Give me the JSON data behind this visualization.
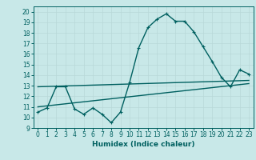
{
  "bg_color": "#c8e8e8",
  "line_color": "#006060",
  "grid_color": "#b8d8d8",
  "xlabel": "Humidex (Indice chaleur)",
  "xlim": [
    -0.5,
    23.5
  ],
  "ylim": [
    9,
    20.5
  ],
  "yticks": [
    9,
    10,
    11,
    12,
    13,
    14,
    15,
    16,
    17,
    18,
    19,
    20
  ],
  "xticks": [
    0,
    1,
    2,
    3,
    4,
    5,
    6,
    7,
    8,
    9,
    10,
    11,
    12,
    13,
    14,
    15,
    16,
    17,
    18,
    19,
    20,
    21,
    22,
    23
  ],
  "line1_x": [
    0,
    1,
    2,
    3,
    4,
    5,
    6,
    7,
    8,
    9,
    10,
    11,
    12,
    13,
    14,
    15,
    16,
    17,
    18,
    19,
    20,
    21,
    22,
    23
  ],
  "line1_y": [
    10.5,
    10.9,
    12.9,
    12.9,
    10.8,
    10.3,
    10.9,
    10.3,
    9.5,
    10.5,
    13.3,
    16.6,
    18.5,
    19.3,
    19.8,
    19.1,
    19.1,
    18.1,
    16.7,
    15.3,
    13.8,
    12.9,
    14.5,
    14.1
  ],
  "line2_x": [
    0,
    23
  ],
  "line2_y": [
    12.9,
    13.5
  ],
  "line3_x": [
    0,
    23
  ],
  "line3_y": [
    11.0,
    13.2
  ],
  "marker_size": 3,
  "line_width": 1.0,
  "tick_fontsize": 5.5,
  "xlabel_fontsize": 6.5
}
